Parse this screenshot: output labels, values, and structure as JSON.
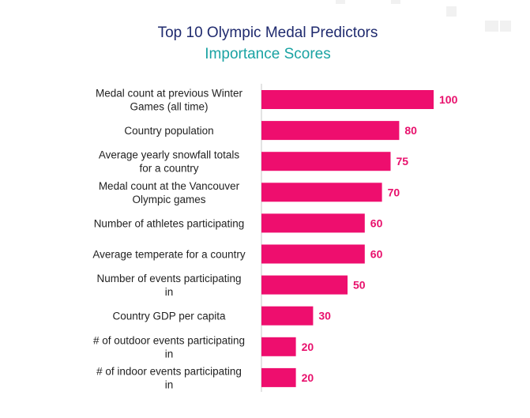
{
  "chart_data": {
    "type": "bar",
    "orientation": "horizontal",
    "title": "Top 10 Olympic Medal Predictors",
    "subtitle": "Importance Scores",
    "categories": [
      [
        "Medal count at previous Winter",
        "Games (all time)"
      ],
      [
        "Country population"
      ],
      [
        "Average yearly snowfall totals",
        "for a country"
      ],
      [
        "Medal count at the Vancouver",
        "Olympic games"
      ],
      [
        "Number of athletes participating"
      ],
      [
        "Average temperate for a country"
      ],
      [
        "Number of events participating",
        "in"
      ],
      [
        "Country GDP per capita"
      ],
      [
        "# of outdoor events participating",
        "in"
      ],
      [
        "# of indoor events participating",
        "in"
      ]
    ],
    "values": [
      100,
      80,
      75,
      70,
      60,
      60,
      50,
      30,
      20,
      20
    ],
    "xlim": [
      0,
      100
    ],
    "grid": false,
    "legend": "none",
    "colors": {
      "bar": "#ee0e6e",
      "value_label": "#e8106c",
      "title": "#1f2a6e",
      "subtitle": "#1aa3a3",
      "axis": "#c8c8c8"
    }
  }
}
